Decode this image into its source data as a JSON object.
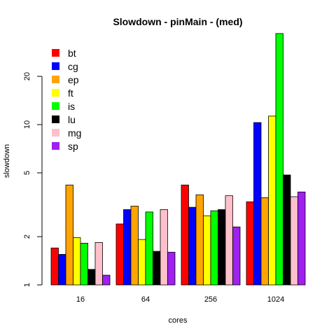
{
  "chart_data": {
    "type": "bar",
    "title": "Slowdown - pinMain - (med)",
    "xlabel": "cores",
    "ylabel": "slowdown",
    "y_scale": "log",
    "ylim": [
      1,
      40
    ],
    "yticks": [
      1,
      2,
      5,
      10,
      20
    ],
    "ytick_labels": [
      "1",
      "2",
      "5",
      "10",
      "20"
    ],
    "categories": [
      "16",
      "64",
      "256",
      "1024"
    ],
    "legend_position": "top-left",
    "grid": false,
    "series": [
      {
        "name": "bt",
        "color": "#ff0000",
        "values": [
          1.7,
          2.4,
          4.2,
          3.3
        ]
      },
      {
        "name": "cg",
        "color": "#0000ff",
        "values": [
          1.55,
          2.95,
          3.05,
          10.3
        ]
      },
      {
        "name": "ep",
        "color": "#ffa500",
        "values": [
          4.2,
          3.1,
          3.65,
          3.5
        ]
      },
      {
        "name": "ft",
        "color": "#ffff00",
        "values": [
          1.97,
          1.92,
          2.7,
          11.3
        ]
      },
      {
        "name": "is",
        "color": "#00ff00",
        "values": [
          1.82,
          2.85,
          2.9,
          37
        ]
      },
      {
        "name": "lu",
        "color": "#000000",
        "values": [
          1.25,
          1.62,
          2.95,
          4.85
        ]
      },
      {
        "name": "mg",
        "color": "#ffc0cb",
        "values": [
          1.84,
          2.95,
          3.6,
          3.55
        ]
      },
      {
        "name": "sp",
        "color": "#a020f0",
        "values": [
          1.15,
          1.6,
          2.3,
          3.8
        ]
      }
    ]
  }
}
